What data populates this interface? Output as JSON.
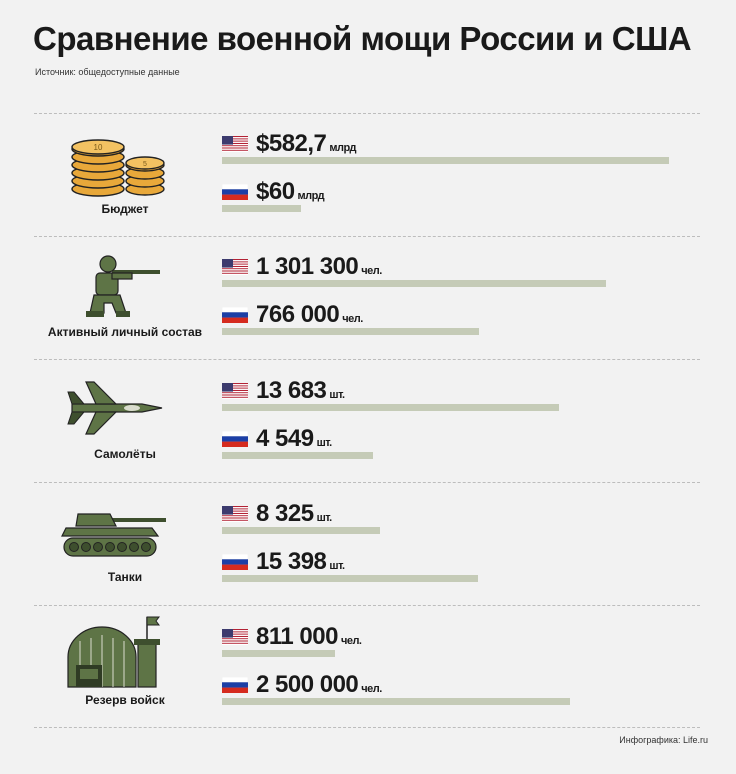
{
  "header": {
    "title": "Сравнение военной мощи России и США",
    "source": "Источник: общедоступные данные",
    "credit": "Инфографика: Life.ru"
  },
  "colors": {
    "bar": "#c5cbb7",
    "army_green": "#5e7446",
    "gold": "#e8a83a"
  },
  "chart_data": {
    "type": "bar",
    "orientation": "horizontal",
    "series": [
      {
        "country": "USA",
        "flag": "us-flag-icon"
      },
      {
        "country": "Russia",
        "flag": "ru-flag-icon"
      }
    ],
    "categories": [
      {
        "label": "Бюджет",
        "icon": "coins-icon",
        "usa": {
          "value": 582.7,
          "display": "$582,7",
          "unit": "млрд"
        },
        "russia": {
          "value": 60,
          "display": "$60",
          "unit": "млрд"
        }
      },
      {
        "label": "Активный личный состав",
        "icon": "soldier-icon",
        "usa": {
          "value": 1301300,
          "display": "1 301 300",
          "unit": "чел."
        },
        "russia": {
          "value": 766000,
          "display": "766 000",
          "unit": "чел."
        }
      },
      {
        "label": "Самолёты",
        "icon": "fighter-jet-icon",
        "usa": {
          "value": 13683,
          "display": "13 683",
          "unit": "шт."
        },
        "russia": {
          "value": 4549,
          "display": "4 549",
          "unit": "шт."
        }
      },
      {
        "label": "Танки",
        "icon": "tank-icon",
        "usa": {
          "value": 8325,
          "display": "8 325",
          "unit": "шт."
        },
        "russia": {
          "value": 15398,
          "display": "15 398",
          "unit": "шт."
        }
      },
      {
        "label": "Резерв войск",
        "icon": "hangar-icon",
        "usa": {
          "value": 811000,
          "display": "811 000",
          "unit": "чел."
        },
        "russia": {
          "value": 2500000,
          "display": "2 500 000",
          "unit": "чел."
        }
      }
    ]
  }
}
